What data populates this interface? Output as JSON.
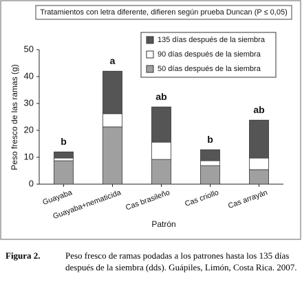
{
  "chart_data": {
    "type": "stacked_bar",
    "note": "Tratamientos con letra diferente, difieren según prueba Duncan (P ≤ 0,05)",
    "ylabel": "Peso fresco de las ramas (g)",
    "xlabel": "Patrón",
    "categories": [
      "Guayaba",
      "Guayaba+nematicida",
      "Cas brasileño",
      "Cas criollo",
      "Cas arrayán"
    ],
    "series": [
      {
        "name": "50 días después de la siembra",
        "color": "#a0a0a0",
        "values": [
          8.7,
          21.3,
          9.2,
          6.9,
          5.4
        ]
      },
      {
        "name": "90 días después de la siembra",
        "color": "#ffffff",
        "values": [
          1.0,
          4.9,
          6.4,
          1.8,
          4.3
        ]
      },
      {
        "name": "135 días después de la siembra",
        "color": "#555555",
        "values": [
          2.3,
          15.8,
          13.1,
          4.1,
          14.1
        ]
      }
    ],
    "letters": [
      "b",
      "a",
      "ab",
      "b",
      "ab"
    ],
    "ylim": [
      0,
      50
    ],
    "yticks": [
      0,
      10,
      20,
      30,
      40,
      50
    ],
    "legend": "upper right",
    "caption_label": "Figura 2.",
    "caption": "Peso fresco de ramas podadas a los patrones hasta los 135 días después de la siembra (dds). Guápiles, Limón, Costa Rica. 2007."
  }
}
